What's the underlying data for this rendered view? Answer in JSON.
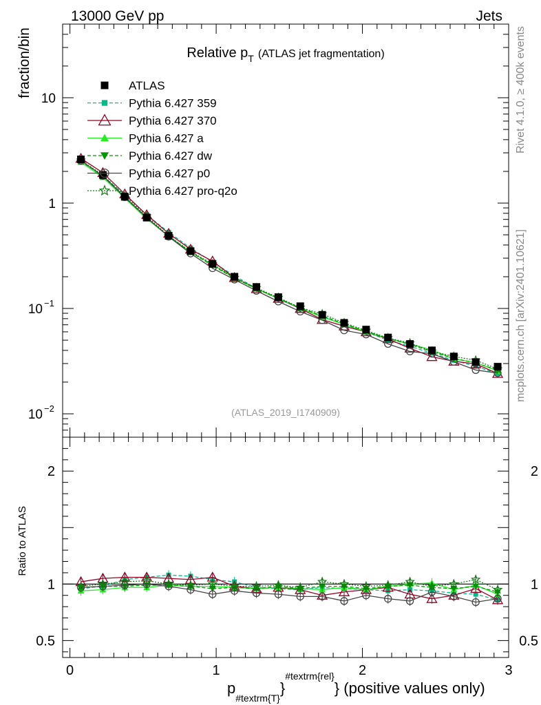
{
  "header": {
    "left": "13000 GeV pp",
    "right": "Jets",
    "side_top": "Rivet 4.1.0, ≥ 400k events",
    "side_bottom": "mcplots.cern.ch [arXiv:2401.10621]"
  },
  "chart_data": {
    "type": "line",
    "title": "Relative p",
    "title_sub": "T",
    "title_suffix": "(ATLAS jet fragmentation)",
    "ylabel": "fraction/bin",
    "ratio_ylabel": "Ratio to ATLAS",
    "xlabel": {
      "main": "p",
      "sub": "#textrm{T}",
      "sup": "#textrm{rel}",
      "suffix": "} (positive values only)"
    },
    "analysis_tag": "(ATLAS_2019_I1740909)",
    "main_yscale": "log",
    "main_ylim": [
      0.006,
      50
    ],
    "main_yticks": [
      {
        "base": "10",
        "exp": "−2"
      },
      {
        "base": "10",
        "exp": "−1"
      },
      {
        "base": "1",
        "exp": ""
      },
      {
        "base": "10",
        "exp": ""
      }
    ],
    "main_ytick_values": [
      0.01,
      0.1,
      1,
      10
    ],
    "ratio_ylim": [
      0.35,
      2.3
    ],
    "ratio_yticks": [
      "0.5",
      "1",
      "2"
    ],
    "ratio_ytick_values": [
      0.5,
      1,
      2
    ],
    "xlim": [
      -0.05,
      3.0
    ],
    "xticks": [
      "0",
      "1",
      "2",
      "3"
    ],
    "xtick_values": [
      0,
      1,
      2,
      3
    ],
    "x": [
      0.075,
      0.225,
      0.375,
      0.525,
      0.675,
      0.825,
      0.975,
      1.125,
      1.275,
      1.425,
      1.575,
      1.725,
      1.875,
      2.025,
      2.175,
      2.325,
      2.475,
      2.625,
      2.775,
      2.925
    ],
    "data": {
      "name": "ATLAS",
      "values": [
        2.6,
        1.85,
        1.15,
        0.73,
        0.49,
        0.35,
        0.265,
        0.2,
        0.16,
        0.128,
        0.105,
        0.087,
        0.073,
        0.063,
        0.053,
        0.046,
        0.04,
        0.035,
        0.031,
        0.028
      ]
    },
    "series": [
      {
        "name": "Pythia 6.427 359",
        "color": "#00bb88",
        "dash": "5,3",
        "marker": "square-small",
        "ratio": [
          0.96,
          0.98,
          1.04,
          1.06,
          1.08,
          1.07,
          1.04,
          1.02,
          0.97,
          0.96,
          0.95,
          0.97,
          0.96,
          0.95,
          0.94,
          0.95,
          0.94,
          0.92,
          0.91,
          0.86
        ]
      },
      {
        "name": "Pythia 6.427 370",
        "color": "#990022",
        "dash": "",
        "marker": "triangle-open",
        "ratio": [
          1.02,
          1.05,
          1.06,
          1.06,
          1.05,
          1.04,
          1.06,
          0.98,
          0.96,
          0.97,
          0.95,
          0.9,
          0.93,
          0.95,
          0.97,
          0.91,
          0.87,
          0.9,
          0.96,
          0.86
        ]
      },
      {
        "name": "Pythia 6.427 a",
        "color": "#22ee22",
        "dash": "",
        "marker": "triangle-filled",
        "ratio": [
          0.94,
          0.95,
          0.97,
          0.97,
          0.99,
          0.98,
          0.98,
          0.97,
          0.96,
          0.97,
          0.96,
          0.95,
          0.97,
          0.95,
          0.98,
          1.0,
          1.01,
          0.95,
          0.99,
          0.91
        ]
      },
      {
        "name": "Pythia 6.427 dw",
        "color": "#009900",
        "dash": "5,3",
        "marker": "triangle-down-filled",
        "ratio": [
          0.97,
          0.98,
          0.98,
          0.99,
          0.99,
          0.98,
          0.96,
          0.97,
          0.96,
          0.98,
          0.96,
          0.98,
          0.98,
          0.96,
          0.98,
          0.99,
          0.97,
          0.96,
          0.98,
          0.93
        ]
      },
      {
        "name": "Pythia 6.427 p0",
        "color": "#444444",
        "dash": "",
        "marker": "circle-open",
        "ratio": [
          0.97,
          0.98,
          0.99,
          1.0,
          0.98,
          0.95,
          0.91,
          0.94,
          0.92,
          0.91,
          0.89,
          0.89,
          0.85,
          0.9,
          0.87,
          0.85,
          0.93,
          0.89,
          0.84,
          0.87
        ]
      },
      {
        "name": "Pythia 6.427 pro-q2o",
        "color": "#117711",
        "dash": "2,2",
        "marker": "star-open",
        "ratio": [
          0.98,
          1.0,
          1.02,
          1.03,
          1.0,
          0.99,
          1.0,
          0.98,
          0.98,
          0.99,
          0.97,
          1.02,
          1.0,
          0.98,
          0.99,
          1.02,
          0.98,
          1.0,
          1.04,
          0.95
        ]
      }
    ],
    "legend_data_label": "ATLAS"
  }
}
